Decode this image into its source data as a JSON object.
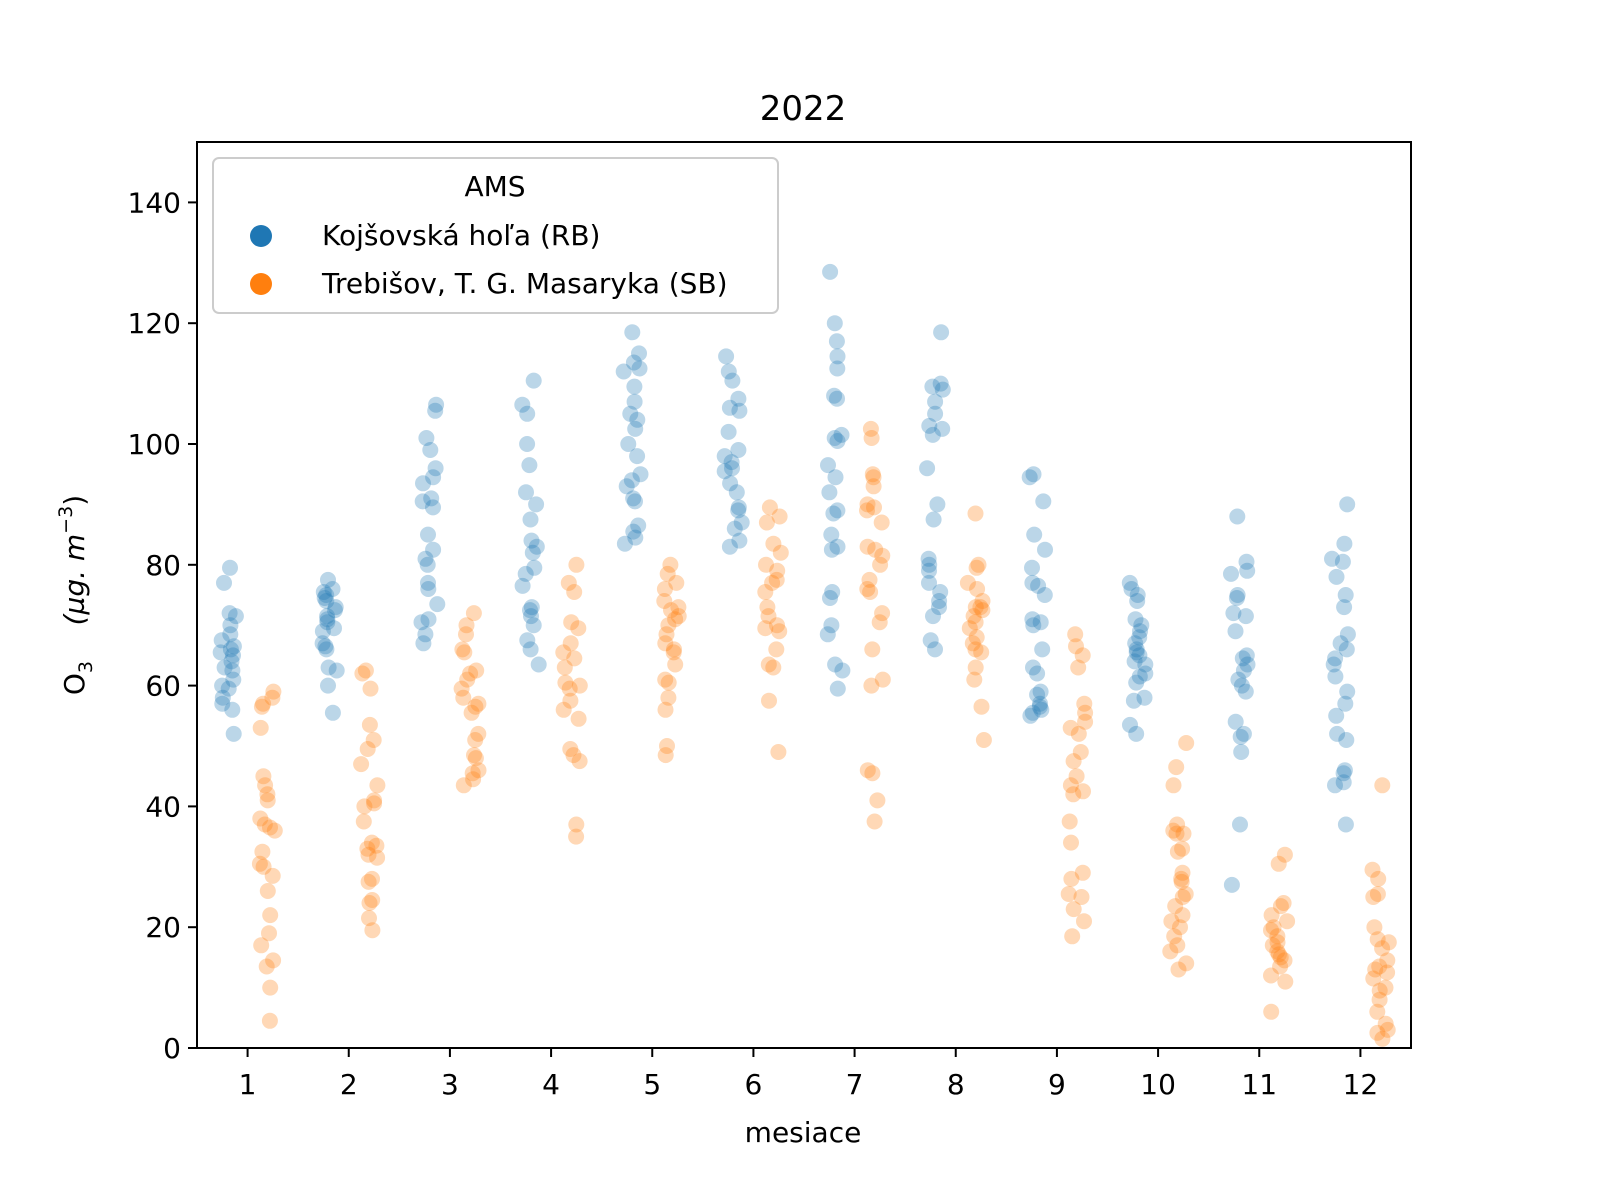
{
  "chart_data": {
    "type": "scatter",
    "title": "2022",
    "xlabel": "mesiace",
    "ylabel_main": "O",
    "ylabel_sub": "3",
    "ylabel_unit": "(µg. m",
    "ylabel_exp": "−3",
    "ylabel_close": ")",
    "ylim": [
      0,
      150
    ],
    "yticks": [
      0,
      20,
      40,
      60,
      80,
      100,
      120,
      140
    ],
    "categories": [
      "1",
      "2",
      "3",
      "4",
      "5",
      "6",
      "7",
      "8",
      "9",
      "10",
      "11",
      "12"
    ],
    "legend_title": "AMS",
    "legend_position": "upper-left",
    "series": [
      {
        "name": "Kojšovská hoľa (RB)",
        "color": "#1f77b4",
        "offset": -0.2,
        "values": [
          [
            79.5,
            77,
            72,
            71.5,
            70,
            68.5,
            67.5,
            66.5,
            66,
            65,
            64,
            63,
            62.5,
            60,
            59.5,
            58,
            57,
            56,
            52,
            61,
            65.5
          ],
          [
            77.5,
            76,
            75,
            74.5,
            74,
            73,
            72.5,
            71.5,
            70.5,
            69.5,
            69,
            67,
            66.5,
            66,
            63,
            62.5,
            60,
            55.5,
            75.5,
            71
          ],
          [
            106.5,
            105.5,
            101,
            99,
            96,
            94.5,
            93.5,
            91,
            90.5,
            89.5,
            85,
            82.5,
            81,
            80,
            77,
            76,
            73.5,
            71,
            70.5,
            68.5,
            67
          ],
          [
            110.5,
            106.5,
            105,
            100,
            96.5,
            92,
            90,
            87.5,
            84,
            83,
            82,
            79.5,
            76.5,
            73,
            72.5,
            71.5,
            70,
            67.5,
            66,
            63.5,
            78.5
          ],
          [
            118.5,
            115,
            113.5,
            112,
            109.5,
            107,
            105,
            104,
            102.5,
            100,
            98,
            95,
            94,
            93,
            91,
            90.5,
            86.5,
            85.5,
            84.5,
            83.5,
            112.5
          ],
          [
            114.5,
            112,
            110.5,
            107.5,
            106,
            105.5,
            102,
            99,
            97,
            96,
            95.5,
            93.5,
            92,
            89.5,
            89,
            87,
            86,
            84,
            83,
            98
          ],
          [
            128.5,
            120,
            117,
            114.5,
            112.5,
            108,
            107.5,
            101.5,
            100.5,
            96.5,
            94.5,
            92,
            89,
            88.5,
            85,
            83,
            82.5,
            75.5,
            74.5,
            70,
            68.5,
            63.5,
            62.5,
            59.5,
            101
          ],
          [
            118.5,
            110,
            109.5,
            107,
            105,
            103,
            102.5,
            101.5,
            96,
            90,
            87.5,
            81,
            80,
            79,
            77,
            75.5,
            74,
            73,
            71.5,
            67.5,
            66,
            109
          ],
          [
            95,
            94.5,
            90.5,
            85,
            82.5,
            79.5,
            77,
            76.5,
            75,
            71,
            70.5,
            70,
            66,
            63,
            62,
            59,
            58.5,
            57,
            56.5,
            55.5,
            55,
            56
          ],
          [
            77,
            76,
            75,
            74,
            71,
            70,
            69,
            68,
            67,
            66,
            65.5,
            65,
            64,
            63.5,
            62,
            61.5,
            60.5,
            58,
            57.5,
            53.5,
            52
          ],
          [
            88,
            80.5,
            79,
            78.5,
            75,
            74.5,
            72,
            71.5,
            69,
            65,
            64.5,
            63.5,
            62.5,
            61,
            60,
            59,
            54,
            52,
            51.5,
            49,
            37,
            27
          ],
          [
            90,
            83.5,
            81,
            80.5,
            78,
            75,
            73,
            68.5,
            67,
            66,
            64.5,
            63.5,
            61.5,
            59,
            57,
            55,
            52,
            51,
            46,
            45.5,
            44,
            43.5,
            37
          ]
        ]
      },
      {
        "name": "Trebišov, T. G. Masaryka (SB)",
        "color": "#ff7f0e",
        "offset": 0.2,
        "values": [
          [
            59,
            58,
            57,
            56.5,
            53,
            45,
            43.5,
            42,
            41,
            38,
            37,
            36.5,
            36,
            32.5,
            30.5,
            30,
            28.5,
            26,
            22,
            19,
            17,
            14.5,
            13.5,
            10,
            4.5
          ],
          [
            62.5,
            62,
            59.5,
            53.5,
            51,
            49.5,
            47,
            43.5,
            41,
            40.5,
            40,
            37.5,
            34,
            33.5,
            33,
            32,
            31.5,
            28,
            27.5,
            24.5,
            24,
            21.5,
            19.5
          ],
          [
            72,
            70,
            68.5,
            66,
            65.5,
            62.5,
            62,
            61,
            59.5,
            58,
            57,
            56.5,
            55.5,
            52,
            51,
            48.5,
            48,
            46,
            45.5,
            44.5,
            43.5
          ],
          [
            80,
            77,
            75.5,
            70.5,
            69.5,
            67,
            65.5,
            64.5,
            63,
            60.5,
            60,
            59.5,
            57.5,
            56,
            54.5,
            49.5,
            48.5,
            47.5,
            37,
            35
          ],
          [
            80,
            78.5,
            77,
            76,
            74,
            73,
            72.5,
            71.5,
            71,
            70,
            68.5,
            67,
            66,
            65.5,
            63.5,
            61,
            60.5,
            58,
            56,
            50,
            48.5
          ],
          [
            89.5,
            88,
            87,
            83.5,
            82,
            80,
            79,
            77.5,
            77,
            75.5,
            73,
            71.5,
            70,
            69,
            66,
            63.5,
            63,
            57.5,
            49,
            69.5
          ],
          [
            102.5,
            101,
            95,
            94.5,
            93,
            90,
            89,
            87,
            83,
            82.5,
            81.5,
            80,
            77.5,
            76,
            75.5,
            72,
            70.5,
            66,
            61,
            60,
            46,
            45.5,
            41,
            37.5,
            89.5
          ],
          [
            88.5,
            80,
            79.5,
            77,
            76,
            74,
            73,
            72.5,
            71.5,
            70.5,
            69.5,
            68,
            67,
            66,
            65.5,
            63,
            61,
            56.5,
            51,
            73
          ],
          [
            68.5,
            66.5,
            65,
            63,
            57,
            55.5,
            54,
            53,
            52,
            49,
            47.5,
            45,
            43.5,
            42.5,
            42,
            37.5,
            34,
            29,
            28,
            25.5,
            25,
            23,
            21,
            18.5
          ],
          [
            50.5,
            46.5,
            43.5,
            37,
            36,
            35.5,
            33,
            32.5,
            29,
            28,
            27.5,
            25.5,
            25,
            23.5,
            22,
            21,
            20,
            18.5,
            17,
            16,
            14,
            13,
            35.5
          ],
          [
            32,
            30.5,
            24,
            23.5,
            22,
            21,
            20,
            19.5,
            18.5,
            17.5,
            17,
            16,
            15.5,
            15,
            14.5,
            13.5,
            12,
            11,
            6
          ],
          [
            43.5,
            29.5,
            28,
            25.5,
            25,
            20,
            18,
            17.5,
            16.5,
            14.5,
            13.5,
            12.5,
            11.5,
            10,
            9.5,
            8,
            6,
            4,
            3,
            2.5,
            1.5,
            13
          ]
        ]
      }
    ]
  }
}
